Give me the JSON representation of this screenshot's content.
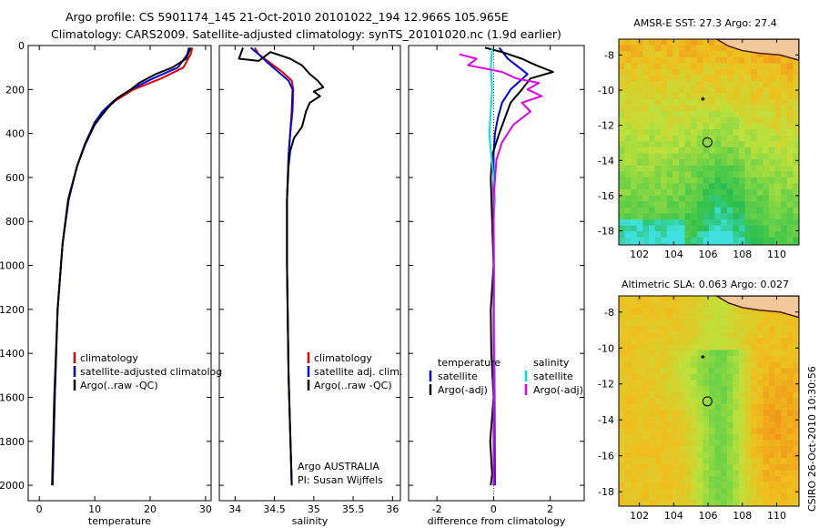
{
  "header": {
    "title_line1": "Argo profile: CS 5901174_145 21-Oct-2010 20101022_194 12.966S 105.965E",
    "title_line2": "Climatology: CARS2009. Satellite-adjusted climatology: synTS_20101020.nc (1.9d earlier)"
  },
  "footer": {
    "stamp": "CSIRO 26-Oct-2010 10:30:56"
  },
  "chart_data": [
    {
      "type": "line",
      "id": "temperature",
      "xlabel": "temperature",
      "ylabel": "",
      "xlim": [
        -2,
        31
      ],
      "ylim": [
        2070,
        0
      ],
      "xticks": [
        0,
        10,
        20,
        30
      ],
      "yticks": [
        0,
        200,
        400,
        600,
        800,
        1000,
        1200,
        1400,
        1600,
        1800,
        2000
      ],
      "series": [
        {
          "name": "climatology",
          "color": "#e00000",
          "x": [
            27.6,
            27.3,
            26.0,
            22.0,
            17.0,
            13.8,
            11.5,
            10.0,
            8.2,
            6.8,
            5.2,
            4.2,
            3.3,
            2.8,
            2.4
          ],
          "y": [
            10,
            40,
            100,
            150,
            200,
            250,
            300,
            350,
            450,
            550,
            700,
            900,
            1200,
            1600,
            2000
          ]
        },
        {
          "name": "satellite-adjusted climatology",
          "color": "#0000e0",
          "x": [
            27.0,
            26.7,
            25.0,
            20.5,
            16.5,
            13.5,
            11.4,
            10.0,
            8.2,
            6.8,
            5.2,
            4.2,
            3.3,
            2.8,
            2.4
          ],
          "y": [
            10,
            40,
            100,
            150,
            200,
            250,
            300,
            350,
            450,
            550,
            700,
            900,
            1200,
            1600,
            2000
          ]
        },
        {
          "name": "Argo(..raw -QC)",
          "color": "#000000",
          "x": [
            27.3,
            27.0,
            26.5,
            24.0,
            21.0,
            18.0,
            16.5,
            14.0,
            12.5,
            11.2,
            10.0,
            8.3,
            6.8,
            5.3,
            4.2,
            3.3,
            2.7,
            2.3
          ],
          "y": [
            10,
            30,
            60,
            100,
            130,
            170,
            200,
            240,
            280,
            320,
            360,
            450,
            550,
            700,
            900,
            1200,
            1600,
            2000
          ]
        }
      ],
      "legend": [
        "climatology",
        "satellite-adjusted climatolog",
        "Argo(..raw -QC)"
      ]
    },
    {
      "type": "line",
      "id": "salinity",
      "xlabel": "salinity",
      "ylabel": "",
      "xlim": [
        33.8,
        36.1
      ],
      "ylim": [
        2070,
        0
      ],
      "xticks": [
        34,
        34.5,
        35,
        35.5,
        36
      ],
      "xticklabels": [
        "34",
        "34.5",
        "35",
        "35.5",
        "36"
      ],
      "series": [
        {
          "name": "climatology",
          "color": "#e00000",
          "x": [
            34.25,
            34.3,
            34.45,
            34.6,
            34.72,
            34.74,
            34.73,
            34.7,
            34.68,
            34.66,
            34.66,
            34.68,
            34.72
          ],
          "y": [
            10,
            40,
            80,
            120,
            160,
            200,
            300,
            400,
            500,
            700,
            1000,
            1500,
            2000
          ]
        },
        {
          "name": "satellite adj. clim.",
          "color": "#0000e0",
          "x": [
            34.2,
            34.3,
            34.42,
            34.55,
            34.68,
            34.73,
            34.72,
            34.7,
            34.68,
            34.66,
            34.66,
            34.68,
            34.72
          ],
          "y": [
            10,
            40,
            80,
            120,
            160,
            200,
            300,
            400,
            500,
            700,
            1000,
            1500,
            2000
          ]
        },
        {
          "name": "Argo(..raw -QC)",
          "color": "#000000",
          "x": [
            34.1,
            34.05,
            34.3,
            34.45,
            34.7,
            34.85,
            34.95,
            35.05,
            35.12,
            35.0,
            35.08,
            34.95,
            34.9,
            34.88,
            34.85,
            34.75,
            34.7,
            34.68,
            34.66,
            34.66,
            34.68,
            34.72
          ],
          "y": [
            10,
            60,
            70,
            30,
            60,
            90,
            130,
            160,
            190,
            210,
            230,
            260,
            300,
            330,
            370,
            420,
            480,
            550,
            700,
            1000,
            1500,
            2000
          ]
        }
      ],
      "legend": [
        "climatology",
        "satellite adj. clim.",
        "Argo(..raw -QC)"
      ],
      "annotation_line1": "Argo AUSTRALIA",
      "annotation_line2": "PI: Susan Wijffels"
    },
    {
      "type": "line",
      "id": "difference",
      "xlabel": "difference from climatology",
      "ylabel": "",
      "xlim": [
        -3,
        3.2
      ],
      "ylim": [
        2070,
        0
      ],
      "xticks": [
        -2,
        0,
        2
      ],
      "series": [
        {
          "name": "temperature satellite",
          "color": "#0000e0",
          "x": [
            0.2,
            0.5,
            0.8,
            1.2,
            0.6,
            0.3,
            0.15,
            0.05,
            0.0,
            0.0,
            0.02,
            0.05
          ],
          "y": [
            10,
            60,
            90,
            130,
            200,
            260,
            330,
            400,
            500,
            700,
            1200,
            2000
          ]
        },
        {
          "name": "temperature Argo(-adj)",
          "color": "#000000",
          "x": [
            -0.3,
            0.3,
            1.0,
            1.5,
            2.1,
            1.3,
            1.0,
            0.6,
            0.2,
            -0.05,
            -0.1,
            -0.05,
            0.0,
            -0.1,
            -0.08,
            0.0,
            -0.12,
            -0.05,
            -0.1
          ],
          "y": [
            10,
            30,
            60,
            90,
            120,
            150,
            200,
            260,
            400,
            500,
            600,
            800,
            1000,
            1200,
            1400,
            1600,
            1800,
            1950,
            2000
          ]
        },
        {
          "name": "salinity satellite",
          "color": "#00e0e0",
          "x": [
            -0.05,
            -0.1,
            -0.05,
            -0.1,
            -0.15,
            -0.08,
            0.0,
            0.05,
            0.0,
            0.02,
            0.0
          ],
          "y": [
            10,
            100,
            200,
            300,
            400,
            500,
            600,
            700,
            800,
            1200,
            2000
          ]
        },
        {
          "name": "salinity Argo(-adj)",
          "color": "#e000e0",
          "x": [
            -1.2,
            -0.6,
            -0.9,
            0.3,
            0.8,
            1.6,
            1.2,
            1.7,
            1.0,
            1.3,
            0.7,
            0.3,
            0.1,
            0.0,
            0.0
          ],
          "y": [
            40,
            60,
            90,
            120,
            150,
            170,
            200,
            230,
            260,
            300,
            360,
            440,
            520,
            700,
            2000
          ]
        }
      ],
      "legend": [
        {
          "group": "temperature",
          "items": [
            "satellite",
            "Argo(-adj)"
          ]
        },
        {
          "group": "salinity",
          "items": [
            "satellite",
            "Argo(-adj)"
          ]
        }
      ]
    },
    {
      "type": "heatmap",
      "id": "sst-map",
      "title": "AMSR-E SST: 27.3 Argo: 27.4",
      "xlim": [
        100.8,
        111.3
      ],
      "ylim": [
        -18.8,
        -7.1
      ],
      "xticks": [
        102,
        104,
        106,
        108,
        110
      ],
      "yticks": [
        -8,
        -10,
        -12,
        -14,
        -16,
        -18
      ],
      "argo_position": [
        105.965,
        -12.966
      ],
      "prior_position": [
        105.7,
        -10.5
      ]
    },
    {
      "type": "heatmap",
      "id": "sla-map",
      "title": "Altimetric SLA: 0.063 Argo: 0.027",
      "xlim": [
        100.8,
        111.3
      ],
      "ylim": [
        -18.8,
        -7.1
      ],
      "xticks": [
        102,
        104,
        106,
        108,
        110
      ],
      "yticks": [
        -8,
        -10,
        -12,
        -14,
        -16,
        -18
      ],
      "argo_position": [
        105.965,
        -12.966
      ],
      "prior_position": [
        105.7,
        -10.5
      ]
    }
  ]
}
